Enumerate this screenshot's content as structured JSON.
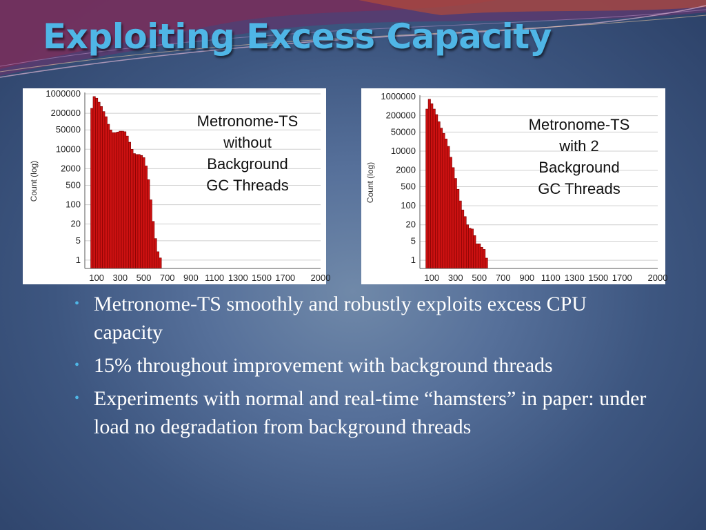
{
  "slide": {
    "title": "Exploiting Excess Capacity",
    "title_color": "#4fb6e6",
    "bullets": [
      "Metronome-TS smoothly and robustly exploits excess CPU capacity",
      "15% throughout improvement with background threads",
      "Experiments with normal and real-time “hamsters” in paper: under load no degradation from background threads"
    ]
  },
  "chart_data": [
    {
      "type": "bar",
      "annotation": [
        "Metronome-TS",
        "without",
        "Background",
        "GC Threads"
      ],
      "ylabel": "Count (log)",
      "y_log_scale": true,
      "y_tick_labels": [
        "1000000",
        "200000",
        "50000",
        "10000",
        "2000",
        "500",
        "100",
        "20",
        "5",
        "1"
      ],
      "x_tick_labels": [
        "100",
        "300",
        "500",
        "700",
        "900",
        "1100",
        "1300",
        "1500",
        "1700",
        "2000"
      ],
      "xlim": [
        0,
        2000
      ],
      "bar_color": "#cc1111",
      "grid": true,
      "x_start": 50,
      "bin_width": 20,
      "values": [
        300000,
        800000,
        700000,
        500000,
        350000,
        230000,
        150000,
        80000,
        50000,
        40000,
        40000,
        42000,
        45000,
        45000,
        43000,
        30000,
        18000,
        10000,
        7000,
        6500,
        6500,
        6000,
        5000,
        2500,
        800,
        150,
        25,
        6,
        2,
        1.2
      ]
    },
    {
      "type": "bar",
      "annotation": [
        "Metronome-TS",
        "with 2",
        "Background",
        "GC Threads"
      ],
      "ylabel": "Count (log)",
      "y_log_scale": true,
      "y_tick_labels": [
        "1000000",
        "200000",
        "50000",
        "10000",
        "2000",
        "500",
        "100",
        "20",
        "5",
        "1"
      ],
      "x_tick_labels": [
        "100",
        "300",
        "500",
        "700",
        "900",
        "1100",
        "1300",
        "1500",
        "1700",
        "2000"
      ],
      "xlim": [
        0,
        2000
      ],
      "bar_color": "#cc1111",
      "grid": true,
      "x_start": 50,
      "bin_width": 20,
      "values": [
        350000,
        800000,
        550000,
        350000,
        220000,
        120000,
        70000,
        45000,
        28000,
        15000,
        6000,
        2500,
        1000,
        400,
        150,
        70,
        40,
        20,
        15,
        14,
        8,
        4,
        4,
        3,
        2.5,
        1.2
      ]
    }
  ]
}
